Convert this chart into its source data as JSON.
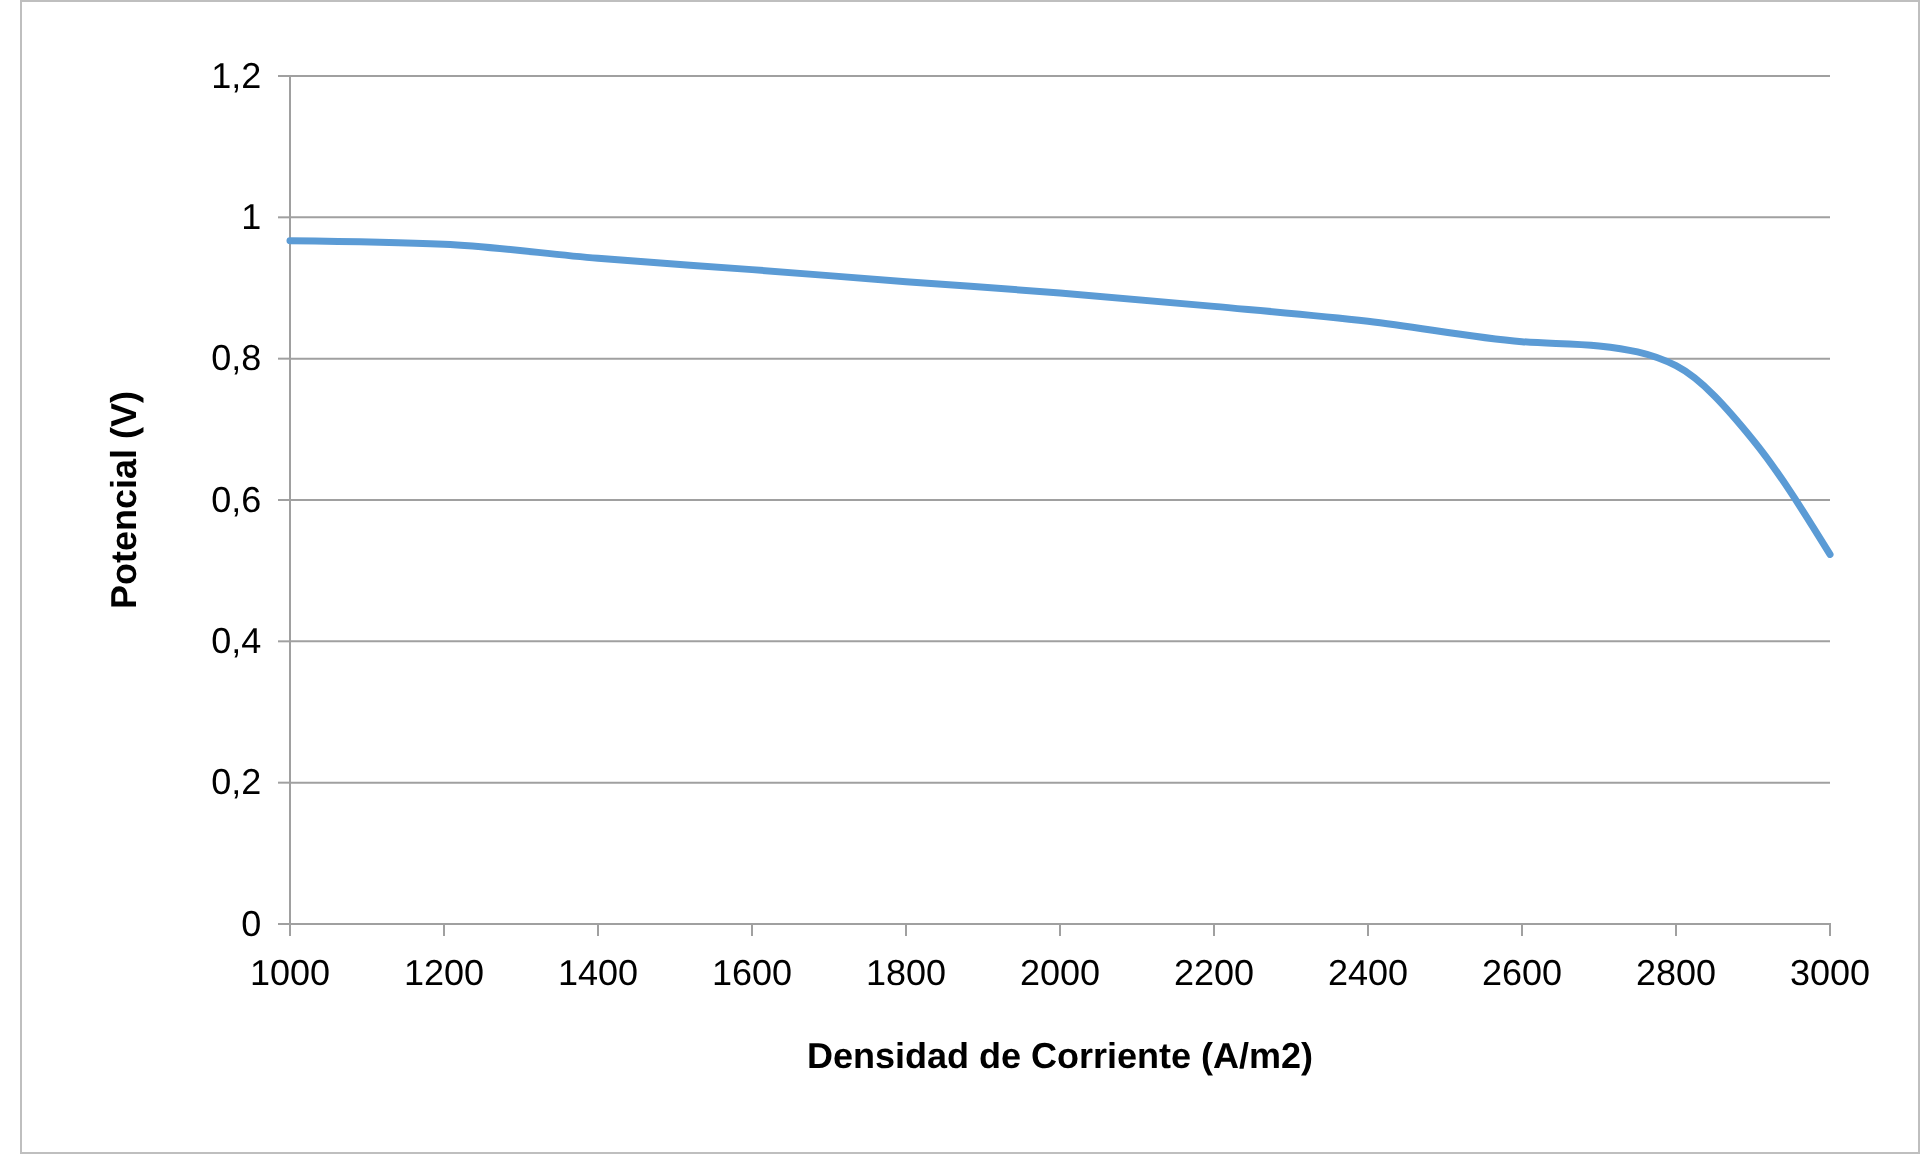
{
  "chart_data": {
    "type": "line",
    "xlabel": "Densidad de Corriente (A/m2)",
    "ylabel": "Potencial (V)",
    "x": [
      1000,
      1200,
      1400,
      1600,
      1800,
      2000,
      2200,
      2400,
      2600,
      2700,
      2800,
      2900,
      3000
    ],
    "series": [
      {
        "color": "#5b9bd5",
        "values": [
          0.967,
          0.962,
          0.942,
          0.926,
          0.909,
          0.893,
          0.874,
          0.853,
          0.824,
          0.818,
          0.79,
          0.685,
          0.523
        ]
      }
    ],
    "xlim": [
      1000,
      3000
    ],
    "xticks": [
      1000,
      1200,
      1400,
      1600,
      1800,
      2000,
      2200,
      2400,
      2600,
      2800,
      3000
    ],
    "ylim": [
      0,
      1.2
    ],
    "yticks": [
      0,
      {
        "value": 0.2,
        "label": "0,2"
      },
      {
        "value": 0.4,
        "label": "0,4"
      },
      {
        "value": 0.6,
        "label": "0,6"
      },
      {
        "value": 0.8,
        "label": "0,8"
      },
      1,
      {
        "value": 1.2,
        "label": "1,2"
      }
    ],
    "grid": "y",
    "marker": "none",
    "line_style": "solid"
  }
}
